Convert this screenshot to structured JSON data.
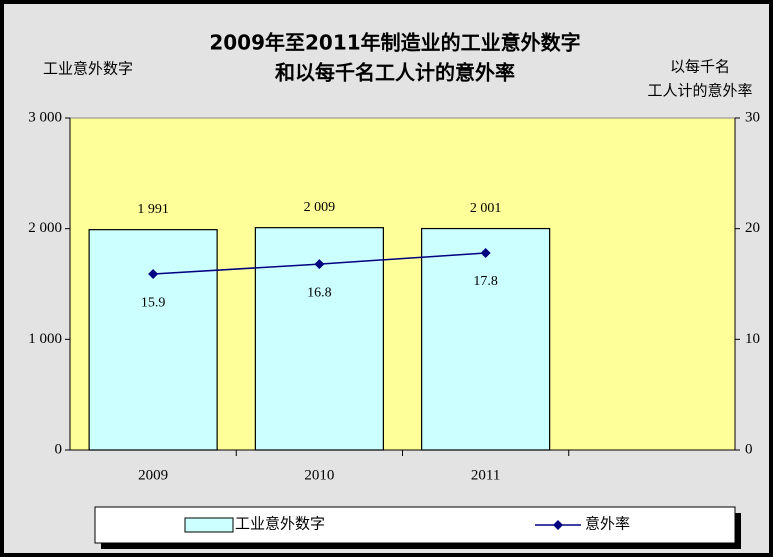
{
  "chart_data": {
    "type": "bar_line",
    "title": [
      "2009年至2011年制造业的工业意外数字",
      "和以每千名工人计的意外率"
    ],
    "ylabel": "工业意外数字",
    "y2label": [
      "以每千名",
      "工人计的意外率"
    ],
    "categories": [
      "2009",
      "2010",
      "2011",
      null
    ],
    "series": [
      {
        "name": "工业意外数字",
        "type": "bar",
        "color": "#ccffff",
        "values": [
          1991,
          2009,
          2001,
          null
        ],
        "value_labels": [
          "1 991",
          "2 009",
          "2 001",
          null
        ]
      },
      {
        "name": "意外率",
        "type": "line",
        "axis": "y2",
        "color": "#000080",
        "values": [
          15.9,
          16.8,
          17.8,
          null
        ]
      }
    ],
    "ylim": [
      0,
      3000
    ],
    "yticks": [
      0,
      {
        "value": 1000,
        "label": "1 000"
      },
      {
        "value": 2000,
        "label": "2 000"
      },
      {
        "value": 3000,
        "label": "3 000"
      }
    ],
    "y2lim": [
      0,
      30
    ],
    "y2ticks": [
      0,
      10,
      20,
      30
    ],
    "legend": "bottom"
  }
}
